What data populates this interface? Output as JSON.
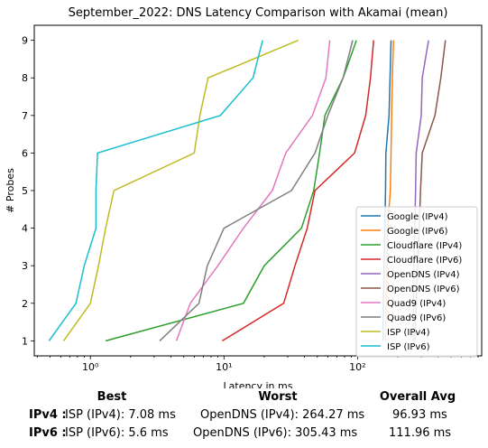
{
  "chart_data": {
    "type": "line",
    "title": "September_2022: DNS Latency Comparison with Akamai (mean)",
    "xlabel": "Latency in ms",
    "ylabel": "# Probes",
    "xscale": "log",
    "xlim": [
      0.38,
      850
    ],
    "ylim": [
      0.6,
      9.4
    ],
    "x_ticks": [
      {
        "value": 1,
        "label": "10⁰"
      },
      {
        "value": 10,
        "label": "10¹"
      },
      {
        "value": 100,
        "label": "10²"
      }
    ],
    "y_ticks": [
      1,
      2,
      3,
      4,
      5,
      6,
      7,
      8,
      9
    ],
    "grid": false,
    "legend_position": "lower-right",
    "series": [
      {
        "name": "Google (IPv4)",
        "color": "#1f77b4",
        "points": [
          [
            155,
            1
          ],
          [
            156,
            2
          ],
          [
            158,
            3
          ],
          [
            160,
            4
          ],
          [
            162,
            5
          ],
          [
            163,
            6
          ],
          [
            172,
            7
          ],
          [
            175,
            8
          ],
          [
            178,
            9
          ]
        ]
      },
      {
        "name": "Google (IPv6)",
        "color": "#ff7f0e",
        "points": [
          [
            162,
            1
          ],
          [
            164,
            2
          ],
          [
            166,
            3
          ],
          [
            168,
            4
          ],
          [
            176,
            5
          ],
          [
            178,
            6
          ],
          [
            180,
            7
          ],
          [
            182,
            8
          ],
          [
            186,
            9
          ]
        ]
      },
      {
        "name": "Cloudflare (IPv4)",
        "color": "#2ca02c",
        "points": [
          [
            1.3,
            1
          ],
          [
            14,
            2
          ],
          [
            20,
            3
          ],
          [
            38,
            4
          ],
          [
            47,
            5
          ],
          [
            52,
            6
          ],
          [
            57,
            7
          ],
          [
            78,
            8
          ],
          [
            98,
            9
          ]
        ]
      },
      {
        "name": "Cloudflare (IPv6)",
        "color": "#d62728",
        "points": [
          [
            9.7,
            1
          ],
          [
            28,
            2
          ],
          [
            34,
            3
          ],
          [
            42,
            4
          ],
          [
            48,
            5
          ],
          [
            95,
            6
          ],
          [
            115,
            7
          ],
          [
            125,
            8
          ],
          [
            132,
            9
          ]
        ]
      },
      {
        "name": "OpenDNS (IPv4)",
        "color": "#9467bd",
        "points": [
          [
            260,
            1
          ],
          [
            262,
            2
          ],
          [
            264,
            3
          ],
          [
            268,
            4
          ],
          [
            272,
            5
          ],
          [
            275,
            6
          ],
          [
            300,
            7
          ],
          [
            305,
            8
          ],
          [
            340,
            9
          ]
        ]
      },
      {
        "name": "OpenDNS (IPv6)",
        "color": "#8c564b",
        "points": [
          [
            268,
            1
          ],
          [
            275,
            2
          ],
          [
            282,
            3
          ],
          [
            290,
            4
          ],
          [
            296,
            5
          ],
          [
            305,
            6
          ],
          [
            380,
            7
          ],
          [
            420,
            8
          ],
          [
            455,
            9
          ]
        ]
      },
      {
        "name": "Quad9 (IPv4)",
        "color": "#e377c2",
        "points": [
          [
            4.4,
            1
          ],
          [
            5.6,
            2
          ],
          [
            9,
            3
          ],
          [
            14,
            4
          ],
          [
            23,
            5
          ],
          [
            29,
            6
          ],
          [
            46,
            7
          ],
          [
            58,
            8
          ],
          [
            62,
            9
          ]
        ]
      },
      {
        "name": "Quad9 (IPv6)",
        "color": "#7f7f7f",
        "points": [
          [
            3.3,
            1
          ],
          [
            6.5,
            2
          ],
          [
            7.5,
            3
          ],
          [
            10,
            4
          ],
          [
            32,
            5
          ],
          [
            48,
            6
          ],
          [
            60,
            7
          ],
          [
            78,
            8
          ],
          [
            92,
            9
          ]
        ]
      },
      {
        "name": "ISP (IPv4)",
        "color": "#bcbd22",
        "points": [
          [
            0.63,
            1
          ],
          [
            1.0,
            2
          ],
          [
            1.15,
            3
          ],
          [
            1.3,
            4
          ],
          [
            1.5,
            5
          ],
          [
            6,
            6
          ],
          [
            6.6,
            7
          ],
          [
            7.6,
            8
          ],
          [
            36,
            9
          ]
        ]
      },
      {
        "name": "ISP (IPv6)",
        "color": "#17becf",
        "points": [
          [
            0.49,
            1
          ],
          [
            0.78,
            2
          ],
          [
            0.9,
            3
          ],
          [
            1.1,
            4
          ],
          [
            1.1,
            5
          ],
          [
            1.13,
            6
          ],
          [
            9.4,
            7
          ],
          [
            16.5,
            8
          ],
          [
            19.5,
            9
          ]
        ]
      }
    ]
  },
  "summary": {
    "headers": {
      "best": "Best",
      "worst": "Worst",
      "avg": "Overall Avg"
    },
    "rows": [
      {
        "label": "IPv4 :",
        "best": "ISP (IPv4): 7.08 ms",
        "worst": "OpenDNS (IPv4): 264.27 ms",
        "avg": "96.93 ms"
      },
      {
        "label": "IPv6 :",
        "best": "ISP (IPv6): 5.6 ms",
        "worst": "OpenDNS (IPv6): 305.43 ms",
        "avg": "111.96 ms"
      }
    ]
  }
}
